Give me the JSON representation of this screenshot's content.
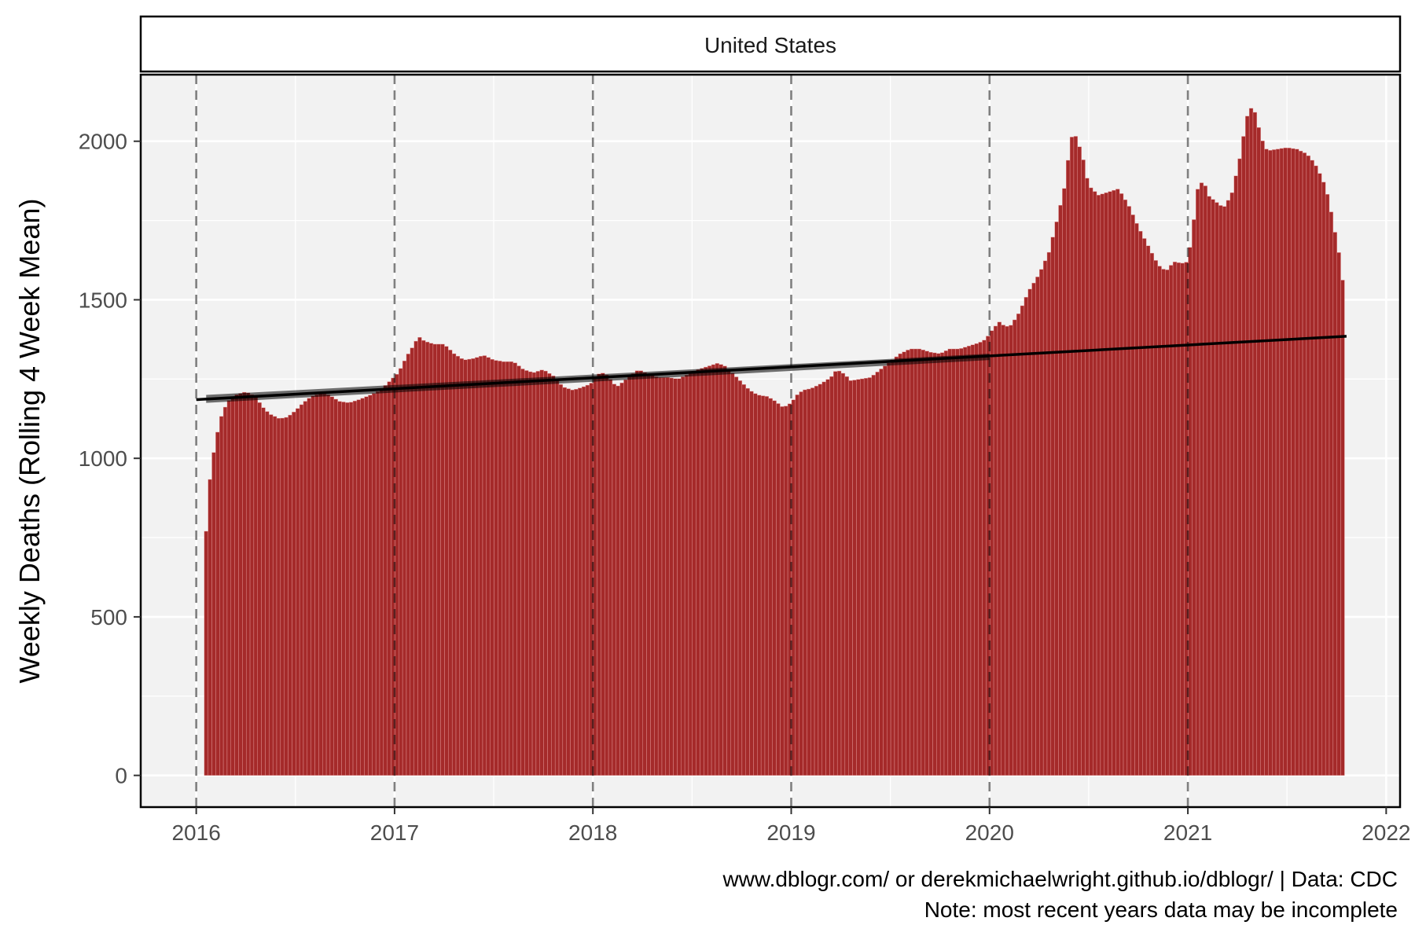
{
  "chart_data": {
    "type": "bar",
    "facet_label": "United States",
    "ylabel": "Weekly Deaths (Rolling 4 Week Mean)",
    "xlabel": "",
    "caption_lines": [
      "www.dblogr.com/ or derekmichaelwright.github.io/dblogr/ | Data: CDC",
      "Note: most recent years data may be incomplete"
    ],
    "x_range": [
      2015.72,
      2022.07
    ],
    "ylim": [
      -100,
      2210
    ],
    "x_ticks": [
      2016,
      2017,
      2018,
      2019,
      2020,
      2021,
      2022
    ],
    "x_tick_labels": [
      "2016",
      "2017",
      "2018",
      "2019",
      "2020",
      "2021",
      "2022"
    ],
    "y_ticks": [
      0,
      500,
      1000,
      1500,
      2000
    ],
    "y_tick_labels": [
      "0",
      "500",
      "1000",
      "1500",
      "2000"
    ],
    "grid": true,
    "year_lines": [
      2016,
      2017,
      2018,
      2019,
      2020,
      2021
    ],
    "bar_color": "#a52a2a",
    "bar_outline_color": "#e8a0a0",
    "panel_background": "#f2f2f2",
    "grid_color": "#ffffff",
    "trend_color": "#000000",
    "series": [
      {
        "x_start": 2016.05,
        "week_step": 0.01923,
        "keypoints": [
          [
            2016.05,
            770
          ],
          [
            2016.07,
            940
          ],
          [
            2016.09,
            1025
          ],
          [
            2016.11,
            1090
          ],
          [
            2016.13,
            1140
          ],
          [
            2016.16,
            1180
          ],
          [
            2016.2,
            1200
          ],
          [
            2016.25,
            1210
          ],
          [
            2016.3,
            1195
          ],
          [
            2016.33,
            1165
          ],
          [
            2016.37,
            1140
          ],
          [
            2016.42,
            1125
          ],
          [
            2016.46,
            1130
          ],
          [
            2016.5,
            1150
          ],
          [
            2016.54,
            1175
          ],
          [
            2016.58,
            1195
          ],
          [
            2016.63,
            1205
          ],
          [
            2016.67,
            1200
          ],
          [
            2016.72,
            1180
          ],
          [
            2016.77,
            1175
          ],
          [
            2016.82,
            1185
          ],
          [
            2016.88,
            1200
          ],
          [
            2016.93,
            1215
          ],
          [
            2016.97,
            1240
          ],
          [
            2017.02,
            1270
          ],
          [
            2017.06,
            1320
          ],
          [
            2017.1,
            1360
          ],
          [
            2017.12,
            1385
          ],
          [
            2017.15,
            1370
          ],
          [
            2017.2,
            1360
          ],
          [
            2017.25,
            1360
          ],
          [
            2017.3,
            1330
          ],
          [
            2017.35,
            1310
          ],
          [
            2017.4,
            1315
          ],
          [
            2017.45,
            1325
          ],
          [
            2017.5,
            1310
          ],
          [
            2017.55,
            1305
          ],
          [
            2017.6,
            1305
          ],
          [
            2017.65,
            1280
          ],
          [
            2017.7,
            1270
          ],
          [
            2017.75,
            1280
          ],
          [
            2017.8,
            1260
          ],
          [
            2017.85,
            1225
          ],
          [
            2017.9,
            1215
          ],
          [
            2017.95,
            1225
          ],
          [
            2017.99,
            1235
          ],
          [
            2018.02,
            1265
          ],
          [
            2018.06,
            1270
          ],
          [
            2018.1,
            1240
          ],
          [
            2018.12,
            1225
          ],
          [
            2018.16,
            1245
          ],
          [
            2018.2,
            1265
          ],
          [
            2018.23,
            1280
          ],
          [
            2018.28,
            1265
          ],
          [
            2018.33,
            1255
          ],
          [
            2018.38,
            1255
          ],
          [
            2018.43,
            1250
          ],
          [
            2018.48,
            1265
          ],
          [
            2018.53,
            1280
          ],
          [
            2018.58,
            1290
          ],
          [
            2018.63,
            1300
          ],
          [
            2018.67,
            1290
          ],
          [
            2018.71,
            1265
          ],
          [
            2018.75,
            1240
          ],
          [
            2018.79,
            1215
          ],
          [
            2018.83,
            1200
          ],
          [
            2018.88,
            1195
          ],
          [
            2018.92,
            1180
          ],
          [
            2018.96,
            1160
          ],
          [
            2019.0,
            1175
          ],
          [
            2019.03,
            1200
          ],
          [
            2019.06,
            1215
          ],
          [
            2019.1,
            1220
          ],
          [
            2019.15,
            1235
          ],
          [
            2019.2,
            1255
          ],
          [
            2019.23,
            1280
          ],
          [
            2019.27,
            1265
          ],
          [
            2019.3,
            1245
          ],
          [
            2019.35,
            1250
          ],
          [
            2019.4,
            1255
          ],
          [
            2019.45,
            1280
          ],
          [
            2019.5,
            1305
          ],
          [
            2019.55,
            1330
          ],
          [
            2019.6,
            1345
          ],
          [
            2019.65,
            1345
          ],
          [
            2019.7,
            1335
          ],
          [
            2019.75,
            1330
          ],
          [
            2019.8,
            1345
          ],
          [
            2019.85,
            1345
          ],
          [
            2019.9,
            1355
          ],
          [
            2019.95,
            1365
          ],
          [
            2019.98,
            1375
          ],
          [
            2020.02,
            1410
          ],
          [
            2020.05,
            1430
          ],
          [
            2020.08,
            1415
          ],
          [
            2020.11,
            1420
          ],
          [
            2020.15,
            1460
          ],
          [
            2020.2,
            1530
          ],
          [
            2020.25,
            1580
          ],
          [
            2020.3,
            1650
          ],
          [
            2020.34,
            1750
          ],
          [
            2020.38,
            1860
          ],
          [
            2020.4,
            1960
          ],
          [
            2020.42,
            2030
          ],
          [
            2020.44,
            2010
          ],
          [
            2020.47,
            1950
          ],
          [
            2020.5,
            1860
          ],
          [
            2020.55,
            1830
          ],
          [
            2020.6,
            1840
          ],
          [
            2020.65,
            1850
          ],
          [
            2020.7,
            1800
          ],
          [
            2020.75,
            1730
          ],
          [
            2020.8,
            1670
          ],
          [
            2020.85,
            1610
          ],
          [
            2020.89,
            1590
          ],
          [
            2020.93,
            1620
          ],
          [
            2020.97,
            1615
          ],
          [
            2021.0,
            1620
          ],
          [
            2021.02,
            1700
          ],
          [
            2021.05,
            1850
          ],
          [
            2021.08,
            1880
          ],
          [
            2021.1,
            1830
          ],
          [
            2021.14,
            1810
          ],
          [
            2021.18,
            1790
          ],
          [
            2021.22,
            1830
          ],
          [
            2021.26,
            1940
          ],
          [
            2021.29,
            2050
          ],
          [
            2021.31,
            2110
          ],
          [
            2021.34,
            2090
          ],
          [
            2021.37,
            2010
          ],
          [
            2021.4,
            1970
          ],
          [
            2021.45,
            1975
          ],
          [
            2021.5,
            1980
          ],
          [
            2021.55,
            1975
          ],
          [
            2021.6,
            1960
          ],
          [
            2021.64,
            1930
          ],
          [
            2021.68,
            1880
          ],
          [
            2021.71,
            1820
          ],
          [
            2021.74,
            1720
          ],
          [
            2021.77,
            1620
          ],
          [
            2021.79,
            1510
          ]
        ]
      }
    ],
    "trend": {
      "solid_line": {
        "x": [
          2016.0,
          2021.8
        ],
        "y": [
          1185,
          1385
        ]
      },
      "band": {
        "x": [
          2016.05,
          2020.0
        ],
        "y_low": [
          1175,
          1310
        ],
        "y_high": [
          1200,
          1330
        ]
      }
    }
  }
}
